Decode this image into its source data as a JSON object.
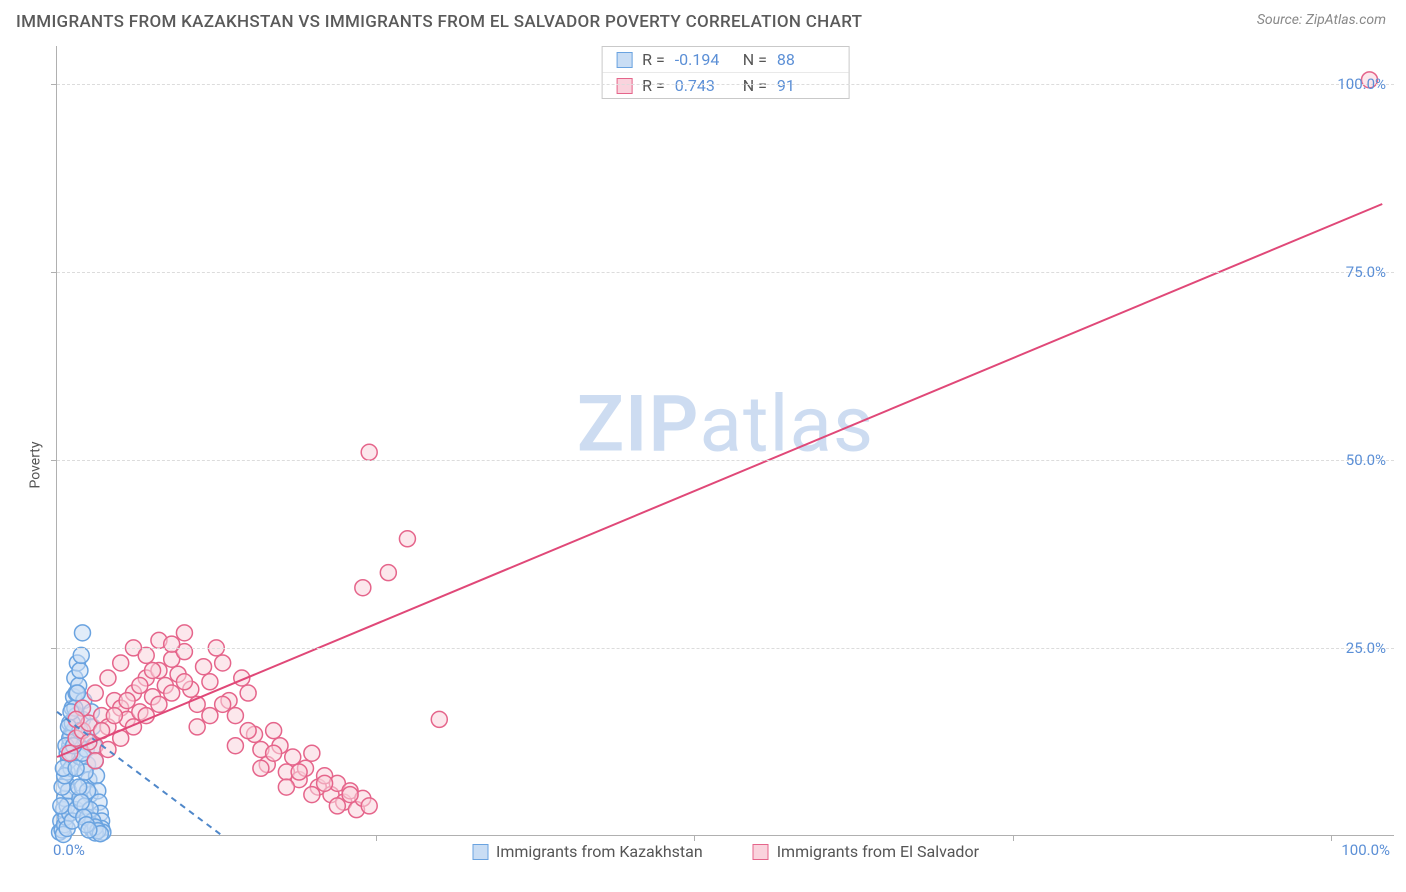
{
  "header": {
    "title": "IMMIGRANTS FROM KAZAKHSTAN VS IMMIGRANTS FROM EL SALVADOR POVERTY CORRELATION CHART",
    "source": "Source: ZipAtlas.com"
  },
  "ylabel": "Poverty",
  "watermark_a": "ZIP",
  "watermark_b": "atlas",
  "chart": {
    "type": "scatter",
    "xlim": [
      0,
      105
    ],
    "ylim": [
      0,
      105
    ],
    "x_tick_positions": [
      0,
      25,
      50,
      75,
      100
    ],
    "y_tick_positions": [
      25,
      50,
      75,
      100
    ],
    "y_tick_labels": [
      "25.0%",
      "50.0%",
      "75.0%",
      "100.0%"
    ],
    "x_tick_left_label": "0.0%",
    "x_tick_right_label": "100.0%",
    "grid_color": "#dcdcdc",
    "axis_color": "#b0b0b0",
    "tick_label_color": "#5b8fd6",
    "background_color": "#ffffff",
    "marker_radius": 8,
    "marker_stroke_width": 1.5,
    "line_width": 2,
    "series": [
      {
        "name": "Immigrants from Kazakhstan",
        "fill": "#c9ddf4",
        "stroke": "#6aa3e0",
        "line_color": "#4f87c9",
        "line_dash": "6,5",
        "trend": {
          "x1": 0,
          "y1": 16.5,
          "x2": 13,
          "y2": 0
        },
        "points": [
          [
            0.2,
            0.5
          ],
          [
            0.3,
            2.0
          ],
          [
            0.4,
            0.8
          ],
          [
            0.5,
            3.5
          ],
          [
            0.6,
            1.5
          ],
          [
            0.6,
            5.0
          ],
          [
            0.7,
            7.0
          ],
          [
            0.7,
            2.5
          ],
          [
            0.8,
            8.5
          ],
          [
            0.8,
            4.0
          ],
          [
            0.9,
            10.0
          ],
          [
            0.9,
            6.0
          ],
          [
            1.0,
            12.0
          ],
          [
            1.0,
            3.0
          ],
          [
            1.0,
            15.0
          ],
          [
            1.1,
            13.5
          ],
          [
            1.1,
            9.0
          ],
          [
            1.2,
            17.0
          ],
          [
            1.2,
            11.0
          ],
          [
            1.3,
            18.5
          ],
          [
            1.3,
            14.0
          ],
          [
            1.4,
            21.0
          ],
          [
            1.5,
            19.0
          ],
          [
            1.5,
            16.0
          ],
          [
            1.6,
            23.0
          ],
          [
            1.6,
            12.5
          ],
          [
            1.7,
            20.0
          ],
          [
            1.8,
            22.0
          ],
          [
            1.8,
            10.5
          ],
          [
            1.9,
            24.0
          ],
          [
            2.0,
            27.0
          ],
          [
            2.0,
            15.5
          ],
          [
            2.1,
            18.0
          ],
          [
            2.2,
            13.0
          ],
          [
            2.3,
            11.5
          ],
          [
            2.4,
            9.5
          ],
          [
            2.5,
            7.5
          ],
          [
            2.6,
            5.5
          ],
          [
            2.7,
            16.5
          ],
          [
            2.8,
            14.5
          ],
          [
            2.9,
            12.0
          ],
          [
            3.0,
            10.0
          ],
          [
            3.1,
            8.0
          ],
          [
            3.2,
            6.0
          ],
          [
            3.3,
            4.5
          ],
          [
            3.4,
            3.0
          ],
          [
            3.5,
            2.0
          ],
          [
            3.5,
            1.0
          ],
          [
            3.6,
            0.5
          ],
          [
            0.5,
            0.2
          ],
          [
            0.8,
            1.0
          ],
          [
            1.2,
            2.0
          ],
          [
            1.5,
            3.5
          ],
          [
            1.8,
            5.0
          ],
          [
            2.0,
            6.5
          ],
          [
            2.2,
            4.0
          ],
          [
            2.4,
            2.5
          ],
          [
            2.6,
            1.5
          ],
          [
            2.8,
            0.8
          ],
          [
            3.0,
            0.4
          ],
          [
            0.4,
            6.5
          ],
          [
            0.6,
            8.0
          ],
          [
            0.8,
            11.0
          ],
          [
            1.0,
            13.0
          ],
          [
            1.2,
            15.0
          ],
          [
            1.4,
            17.0
          ],
          [
            1.6,
            19.0
          ],
          [
            1.8,
            14.0
          ],
          [
            2.0,
            11.0
          ],
          [
            2.2,
            8.5
          ],
          [
            2.4,
            6.0
          ],
          [
            2.6,
            3.5
          ],
          [
            2.8,
            2.0
          ],
          [
            3.0,
            1.2
          ],
          [
            3.2,
            0.7
          ],
          [
            3.4,
            0.3
          ],
          [
            0.3,
            4.0
          ],
          [
            0.5,
            9.0
          ],
          [
            0.7,
            12.0
          ],
          [
            0.9,
            14.5
          ],
          [
            1.1,
            16.5
          ],
          [
            1.3,
            12.0
          ],
          [
            1.5,
            9.0
          ],
          [
            1.7,
            6.5
          ],
          [
            1.9,
            4.5
          ],
          [
            2.1,
            2.5
          ],
          [
            2.3,
            1.5
          ],
          [
            2.5,
            0.8
          ]
        ]
      },
      {
        "name": "Immigrants from El Salvador",
        "fill": "#fad3dd",
        "stroke": "#e5658b",
        "line_color": "#e04878",
        "line_dash": "",
        "trend": {
          "x1": 0,
          "y1": 10.5,
          "x2": 104,
          "y2": 84
        },
        "points": [
          [
            1.0,
            11.0
          ],
          [
            1.5,
            13.0
          ],
          [
            2.0,
            14.0
          ],
          [
            2.5,
            15.0
          ],
          [
            3.0,
            12.0
          ],
          [
            3.5,
            16.0
          ],
          [
            4.0,
            14.5
          ],
          [
            4.5,
            18.0
          ],
          [
            5.0,
            17.0
          ],
          [
            5.5,
            15.5
          ],
          [
            6.0,
            19.0
          ],
          [
            6.5,
            16.5
          ],
          [
            7.0,
            21.0
          ],
          [
            7.5,
            18.5
          ],
          [
            8.0,
            22.0
          ],
          [
            8.5,
            20.0
          ],
          [
            9.0,
            23.5
          ],
          [
            9.5,
            21.5
          ],
          [
            10.0,
            24.5
          ],
          [
            10.5,
            19.5
          ],
          [
            11.0,
            17.5
          ],
          [
            11.5,
            22.5
          ],
          [
            12.0,
            20.5
          ],
          [
            12.5,
            25.0
          ],
          [
            13.0,
            23.0
          ],
          [
            13.5,
            18.0
          ],
          [
            14.0,
            16.0
          ],
          [
            14.5,
            21.0
          ],
          [
            15.0,
            19.0
          ],
          [
            15.5,
            13.5
          ],
          [
            16.0,
            11.5
          ],
          [
            16.5,
            9.5
          ],
          [
            17.0,
            14.0
          ],
          [
            17.5,
            12.0
          ],
          [
            18.0,
            8.5
          ],
          [
            18.5,
            10.5
          ],
          [
            19.0,
            7.5
          ],
          [
            19.5,
            9.0
          ],
          [
            20.0,
            11.0
          ],
          [
            20.5,
            6.5
          ],
          [
            21.0,
            8.0
          ],
          [
            21.5,
            5.5
          ],
          [
            22.0,
            7.0
          ],
          [
            22.5,
            4.5
          ],
          [
            23.0,
            6.0
          ],
          [
            23.5,
            3.5
          ],
          [
            24.0,
            5.0
          ],
          [
            24.5,
            4.0
          ],
          [
            3.0,
            10.0
          ],
          [
            4.0,
            11.5
          ],
          [
            5.0,
            13.0
          ],
          [
            6.0,
            14.5
          ],
          [
            7.0,
            16.0
          ],
          [
            8.0,
            17.5
          ],
          [
            9.0,
            19.0
          ],
          [
            10.0,
            20.5
          ],
          [
            11.0,
            14.5
          ],
          [
            12.0,
            16.0
          ],
          [
            13.0,
            17.5
          ],
          [
            14.0,
            12.0
          ],
          [
            15.0,
            14.0
          ],
          [
            16.0,
            9.0
          ],
          [
            17.0,
            11.0
          ],
          [
            18.0,
            6.5
          ],
          [
            19.0,
            8.5
          ],
          [
            20.0,
            5.5
          ],
          [
            21.0,
            7.0
          ],
          [
            22.0,
            4.0
          ],
          [
            23.0,
            5.5
          ],
          [
            2.0,
            17.0
          ],
          [
            3.0,
            19.0
          ],
          [
            4.0,
            21.0
          ],
          [
            5.0,
            23.0
          ],
          [
            6.0,
            25.0
          ],
          [
            7.0,
            24.0
          ],
          [
            8.0,
            26.0
          ],
          [
            9.0,
            25.5
          ],
          [
            10.0,
            27.0
          ],
          [
            26.0,
            35.0
          ],
          [
            24.0,
            33.0
          ],
          [
            27.5,
            39.5
          ],
          [
            24.5,
            51.0
          ],
          [
            30.0,
            15.5
          ],
          [
            103.0,
            100.5
          ],
          [
            1.5,
            15.5
          ],
          [
            2.5,
            12.5
          ],
          [
            3.5,
            14.0
          ],
          [
            4.5,
            16.0
          ],
          [
            5.5,
            18.0
          ],
          [
            6.5,
            20.0
          ],
          [
            7.5,
            22.0
          ]
        ]
      }
    ]
  },
  "stats": {
    "rows": [
      {
        "swatch_fill": "#c9ddf4",
        "swatch_stroke": "#6aa3e0",
        "r_label": "R =",
        "r": "-0.194",
        "n_label": "N =",
        "n": "88"
      },
      {
        "swatch_fill": "#fad3dd",
        "swatch_stroke": "#e5658b",
        "r_label": "R =",
        "r": "0.743",
        "n_label": "N =",
        "n": "91"
      }
    ]
  },
  "legend": {
    "items": [
      {
        "swatch_fill": "#c9ddf4",
        "swatch_stroke": "#6aa3e0",
        "label": "Immigrants from Kazakhstan"
      },
      {
        "swatch_fill": "#fad3dd",
        "swatch_stroke": "#e5658b",
        "label": "Immigrants from El Salvador"
      }
    ]
  }
}
